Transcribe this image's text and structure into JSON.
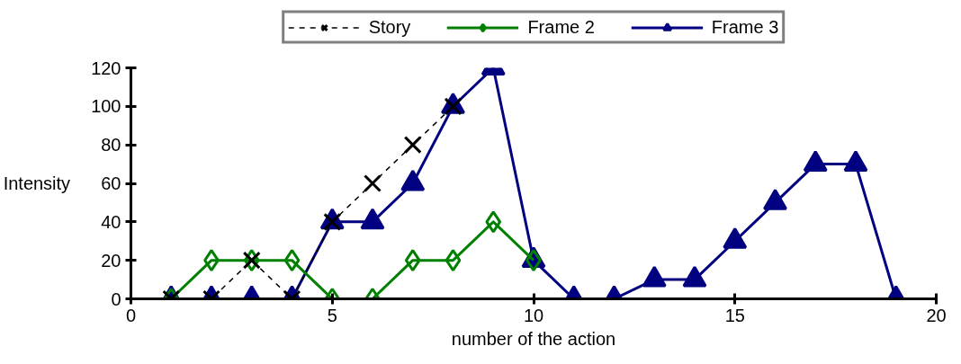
{
  "chart_data": {
    "type": "line",
    "xlabel": "number of the action",
    "ylabel": "Intensity",
    "xlim": [
      0,
      20
    ],
    "xticks": [
      0,
      5,
      10,
      15,
      20
    ],
    "ylim": [
      0,
      120
    ],
    "yticks": [
      0,
      20,
      40,
      60,
      80,
      100,
      120
    ],
    "grid": false,
    "legend": "top",
    "series": [
      {
        "name": "Story",
        "color": "#000000",
        "marker": "cross",
        "line_style": "dashed",
        "x": [
          1,
          2,
          3,
          4,
          5,
          6,
          7,
          8
        ],
        "values": [
          0,
          0,
          20,
          0,
          40,
          60,
          80,
          100
        ]
      },
      {
        "name": "Frame 2",
        "color": "#008000",
        "marker": "diamond",
        "line_style": "solid",
        "x": [
          1,
          2,
          3,
          4,
          5,
          6,
          7,
          8,
          9,
          10
        ],
        "values": [
          0,
          20,
          20,
          20,
          0,
          0,
          20,
          20,
          40,
          20
        ]
      },
      {
        "name": "Frame 3",
        "color": "#000080",
        "marker": "triangle",
        "line_style": "solid",
        "x": [
          1,
          2,
          3,
          4,
          5,
          6,
          7,
          8,
          9,
          10,
          11,
          12,
          13,
          14,
          15,
          16,
          17,
          18,
          19
        ],
        "values": [
          0,
          0,
          0,
          0,
          40,
          40,
          60,
          100,
          120,
          20,
          0,
          0,
          10,
          10,
          30,
          50,
          70,
          70,
          0
        ]
      }
    ]
  }
}
